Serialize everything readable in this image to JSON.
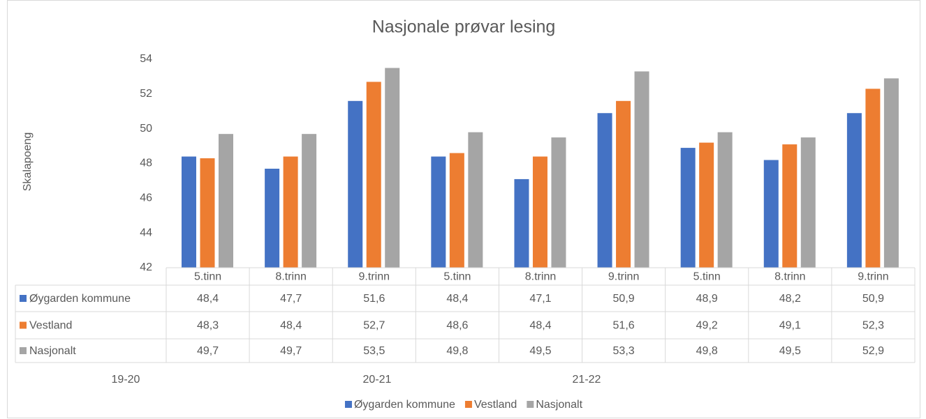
{
  "chart_data": {
    "type": "bar",
    "title": "Nasjonale prøvar lesing",
    "y_label": "Skalapoeng",
    "categories": [
      "5.tinn",
      "8.trinn",
      "9.trinn",
      "5.tinn",
      "8.trinn",
      "9.trinn",
      "5.tinn",
      "8.trinn",
      "9.trinn"
    ],
    "group_labels": [
      "19-20",
      "20-21",
      "21-22"
    ],
    "series": [
      {
        "name": "Øygarden kommune",
        "color": "#4472c4",
        "values": [
          48.4,
          47.7,
          51.6,
          48.4,
          47.1,
          50.9,
          48.9,
          48.2,
          50.9
        ],
        "value_labels": [
          "48,4",
          "47,7",
          "51,6",
          "48,4",
          "47,1",
          "50,9",
          "48,9",
          "48,2",
          "50,9"
        ]
      },
      {
        "name": "Vestland",
        "color": "#ed7d31",
        "values": [
          48.3,
          48.4,
          52.7,
          48.6,
          48.4,
          51.6,
          49.2,
          49.1,
          52.3
        ],
        "value_labels": [
          "48,3",
          "48,4",
          "52,7",
          "48,6",
          "48,4",
          "51,6",
          "49,2",
          "49,1",
          "52,3"
        ]
      },
      {
        "name": "Nasjonalt",
        "color": "#a5a5a5",
        "values": [
          49.7,
          49.7,
          53.5,
          49.8,
          49.5,
          53.3,
          49.8,
          49.5,
          52.9
        ],
        "value_labels": [
          "49,7",
          "49,7",
          "53,5",
          "49,8",
          "49,5",
          "53,3",
          "49,8",
          "49,5",
          "52,9"
        ]
      }
    ],
    "ylim": [
      42,
      54
    ],
    "yticks": [
      42,
      44,
      46,
      48,
      50,
      52,
      54
    ],
    "grid": false,
    "legend": "bottom"
  }
}
